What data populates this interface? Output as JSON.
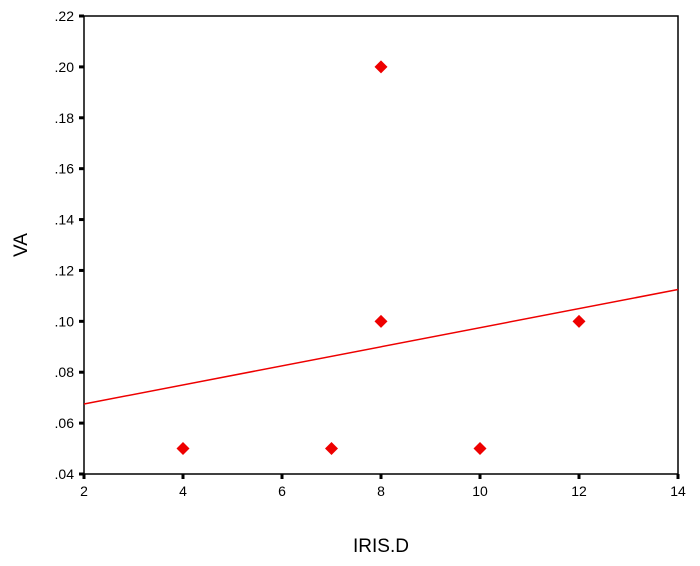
{
  "chart_data": {
    "type": "scatter",
    "xlabel": "IRIS.D",
    "ylabel": "VA",
    "xlim": [
      2,
      14
    ],
    "ylim": [
      0.04,
      0.22
    ],
    "x_ticks": [
      2,
      4,
      6,
      8,
      10,
      12,
      14
    ],
    "x_tick_labels": [
      "2",
      "4",
      "6",
      "8",
      "10",
      "12",
      "14"
    ],
    "y_ticks": [
      0.04,
      0.06,
      0.08,
      0.1,
      0.12,
      0.14,
      0.16,
      0.18,
      0.2,
      0.22
    ],
    "y_tick_labels": [
      ".04",
      ".06",
      ".08",
      ".10",
      ".12",
      ".14",
      ".16",
      ".18",
      ".20",
      ".22"
    ],
    "grid": false,
    "marker": "diamond",
    "points": [
      {
        "x": 4,
        "y": 0.05
      },
      {
        "x": 7,
        "y": 0.05
      },
      {
        "x": 8,
        "y": 0.2
      },
      {
        "x": 8,
        "y": 0.1
      },
      {
        "x": 10,
        "y": 0.05
      },
      {
        "x": 12,
        "y": 0.1
      }
    ],
    "fit_line": {
      "type": "linear",
      "x": [
        2,
        14
      ],
      "y": [
        0.0675,
        0.1125
      ]
    },
    "colors": {
      "marker": "#ee0000",
      "fit_line": "#ee0000",
      "axes": "#000000"
    }
  }
}
